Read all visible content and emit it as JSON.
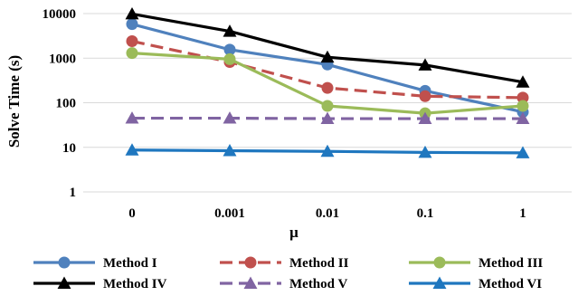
{
  "chart_data": {
    "type": "line",
    "xlabel": "μ",
    "ylabel": "Solve Time (s)",
    "y_scale": "log",
    "ylim": [
      1,
      10000
    ],
    "y_ticks": [
      "1",
      "10",
      "100",
      "1000",
      "10000"
    ],
    "categories": [
      "0",
      "0.001",
      "0.01",
      "0.1",
      "1"
    ],
    "grid": "horizontal",
    "legend_position": "bottom",
    "series": [
      {
        "name": "Method I",
        "values": [
          5800,
          1550,
          720,
          185,
          62
        ],
        "color": "#4F81BD",
        "marker": "circle",
        "dash": "solid"
      },
      {
        "name": "Method II",
        "values": [
          2400,
          820,
          215,
          140,
          130
        ],
        "color": "#C0504D",
        "marker": "circle",
        "dash": "dashed"
      },
      {
        "name": "Method III",
        "values": [
          1300,
          950,
          85,
          58,
          85
        ],
        "color": "#9BBB59",
        "marker": "circle",
        "dash": "solid"
      },
      {
        "name": "Method IV",
        "values": [
          9800,
          4000,
          1050,
          700,
          290
        ],
        "color": "#000000",
        "marker": "triangle",
        "dash": "solid"
      },
      {
        "name": "Method V",
        "values": [
          45,
          45,
          44,
          44,
          44
        ],
        "color": "#8064A2",
        "marker": "triangle",
        "dash": "dashed"
      },
      {
        "name": "Method VI",
        "values": [
          8.7,
          8.4,
          8.1,
          7.7,
          7.5
        ],
        "color": "#1F77BF",
        "marker": "triangle",
        "dash": "solid"
      }
    ]
  }
}
